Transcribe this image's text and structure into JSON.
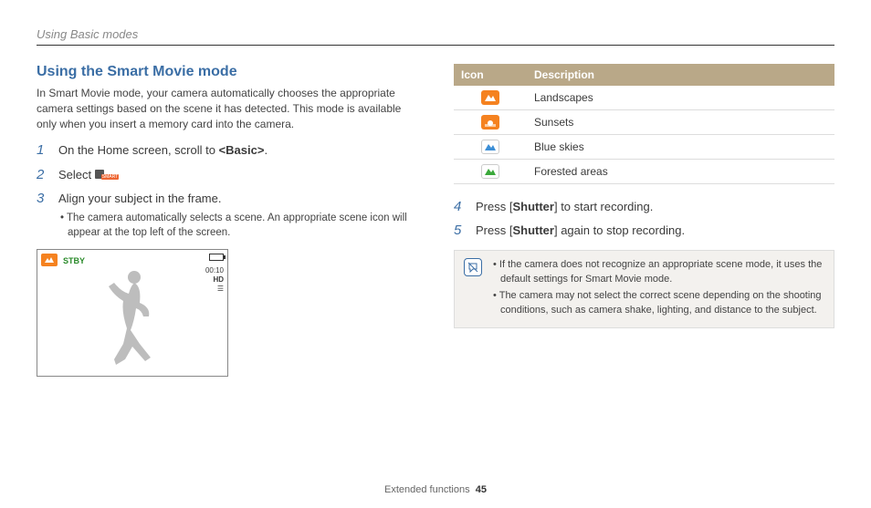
{
  "breadcrumb": "Using Basic modes",
  "section_title": "Using the Smart Movie mode",
  "intro": "In Smart Movie mode, your camera automatically chooses the appropriate camera settings based on the scene it has detected. This mode is available only when you insert a memory card into the camera.",
  "steps_left": [
    {
      "num": "1",
      "text_pre": "On the Home screen, scroll to ",
      "bold": "<Basic>",
      "text_post": "."
    },
    {
      "num": "2",
      "text_pre": "Select ",
      "has_icon": true,
      "text_post": "."
    },
    {
      "num": "3",
      "text_pre": "Align your subject in the frame.",
      "sub": "The camera automatically selects a scene. An appropriate scene icon will appear at the top left of the screen."
    }
  ],
  "camera_preview": {
    "stby_label": "STBY",
    "time_label": "00:10",
    "hd_label": "HD",
    "corner_icon_bg": "#f58220"
  },
  "icon_table": {
    "headers": [
      "Icon",
      "Description"
    ],
    "rows": [
      {
        "bg": "#f58220",
        "glyph": "mountain",
        "fg": "#ffffff",
        "desc": "Landscapes"
      },
      {
        "bg": "#f58220",
        "glyph": "sunset",
        "fg": "#ffffff",
        "desc": "Sunsets"
      },
      {
        "bg": "#ffffff",
        "glyph": "mountain",
        "fg": "#3b8ed6",
        "border": "#ccc",
        "desc": "Blue skies"
      },
      {
        "bg": "#ffffff",
        "glyph": "mountain",
        "fg": "#3aa83a",
        "border": "#ccc",
        "desc": "Forested areas"
      }
    ]
  },
  "steps_right": [
    {
      "num": "4",
      "text_pre": "Press [",
      "bold": "Shutter",
      "text_post": "] to start recording."
    },
    {
      "num": "5",
      "text_pre": "Press [",
      "bold": "Shutter",
      "text_post": "] again to stop recording."
    }
  ],
  "notes": [
    "If the camera does not recognize an appropriate scene mode, it uses the default settings for Smart Movie mode.",
    "The camera may not select the correct scene depending on the shooting conditions, such as camera shake, lighting, and distance to the subject."
  ],
  "footer_label": "Extended functions",
  "footer_page": "45",
  "colors": {
    "heading": "#3b6ea5",
    "table_header_bg": "#b9a888",
    "note_bg": "#f3f1ee"
  }
}
